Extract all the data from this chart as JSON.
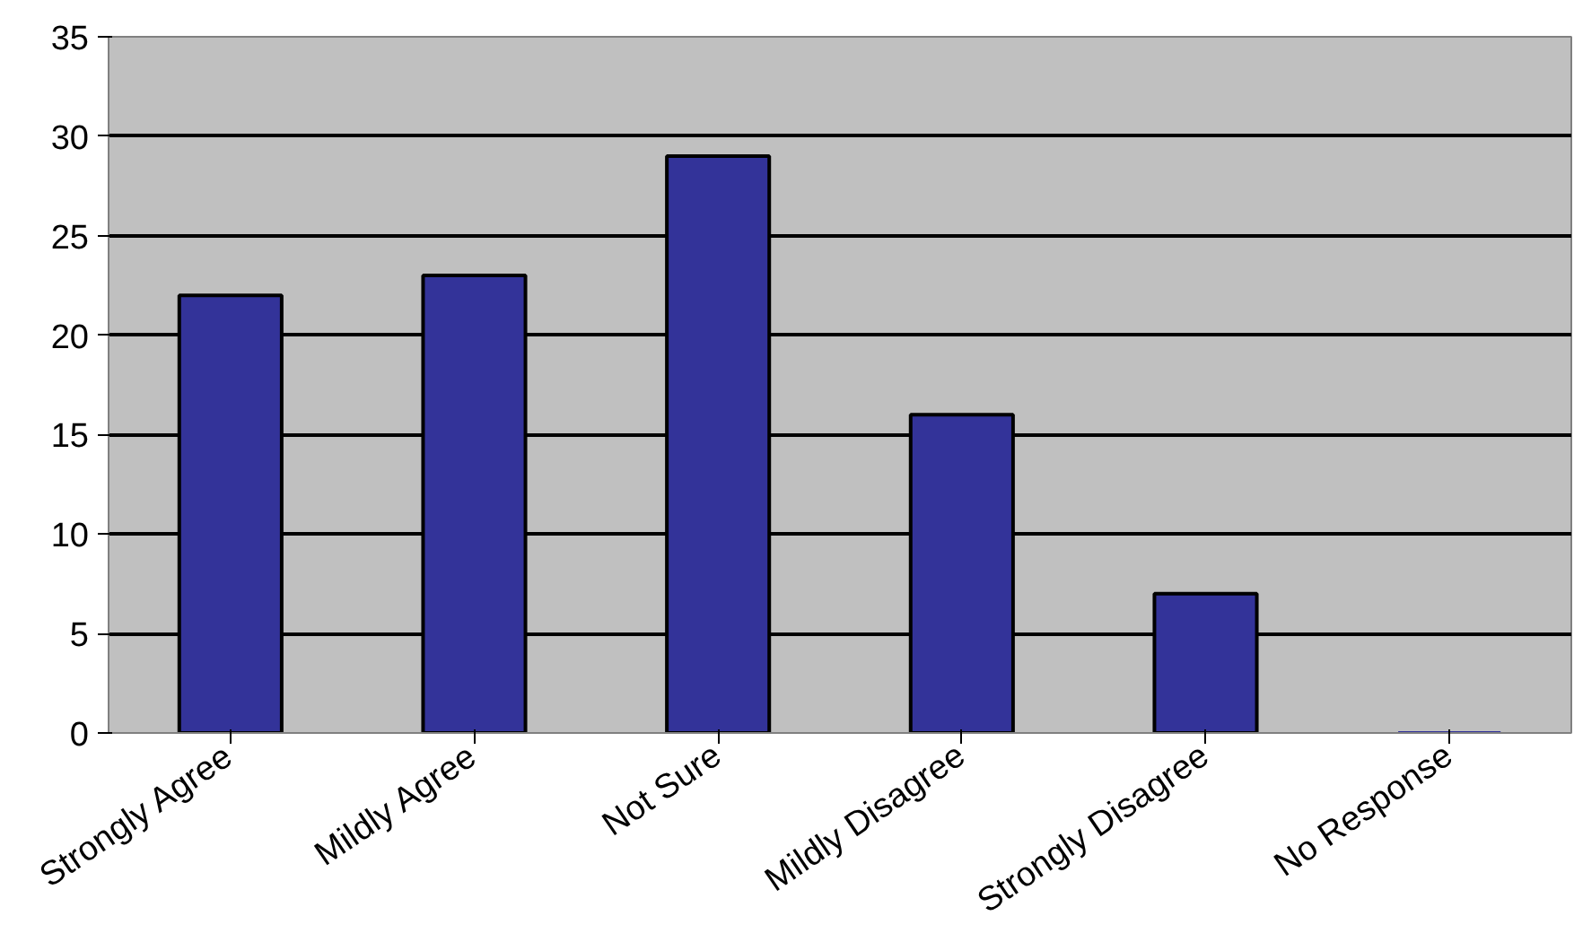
{
  "chart_data": {
    "type": "bar",
    "categories": [
      "Strongly Agree",
      "Mildly Agree",
      "Not Sure",
      "Mildly Disagree",
      "Strongly Disagree",
      "No Response"
    ],
    "values": [
      22,
      23,
      29,
      16,
      7,
      0
    ],
    "color": "#333399",
    "ylim": [
      0,
      35
    ],
    "yticks": [
      0,
      5,
      10,
      15,
      20,
      25,
      30,
      35
    ],
    "grid": "y"
  }
}
